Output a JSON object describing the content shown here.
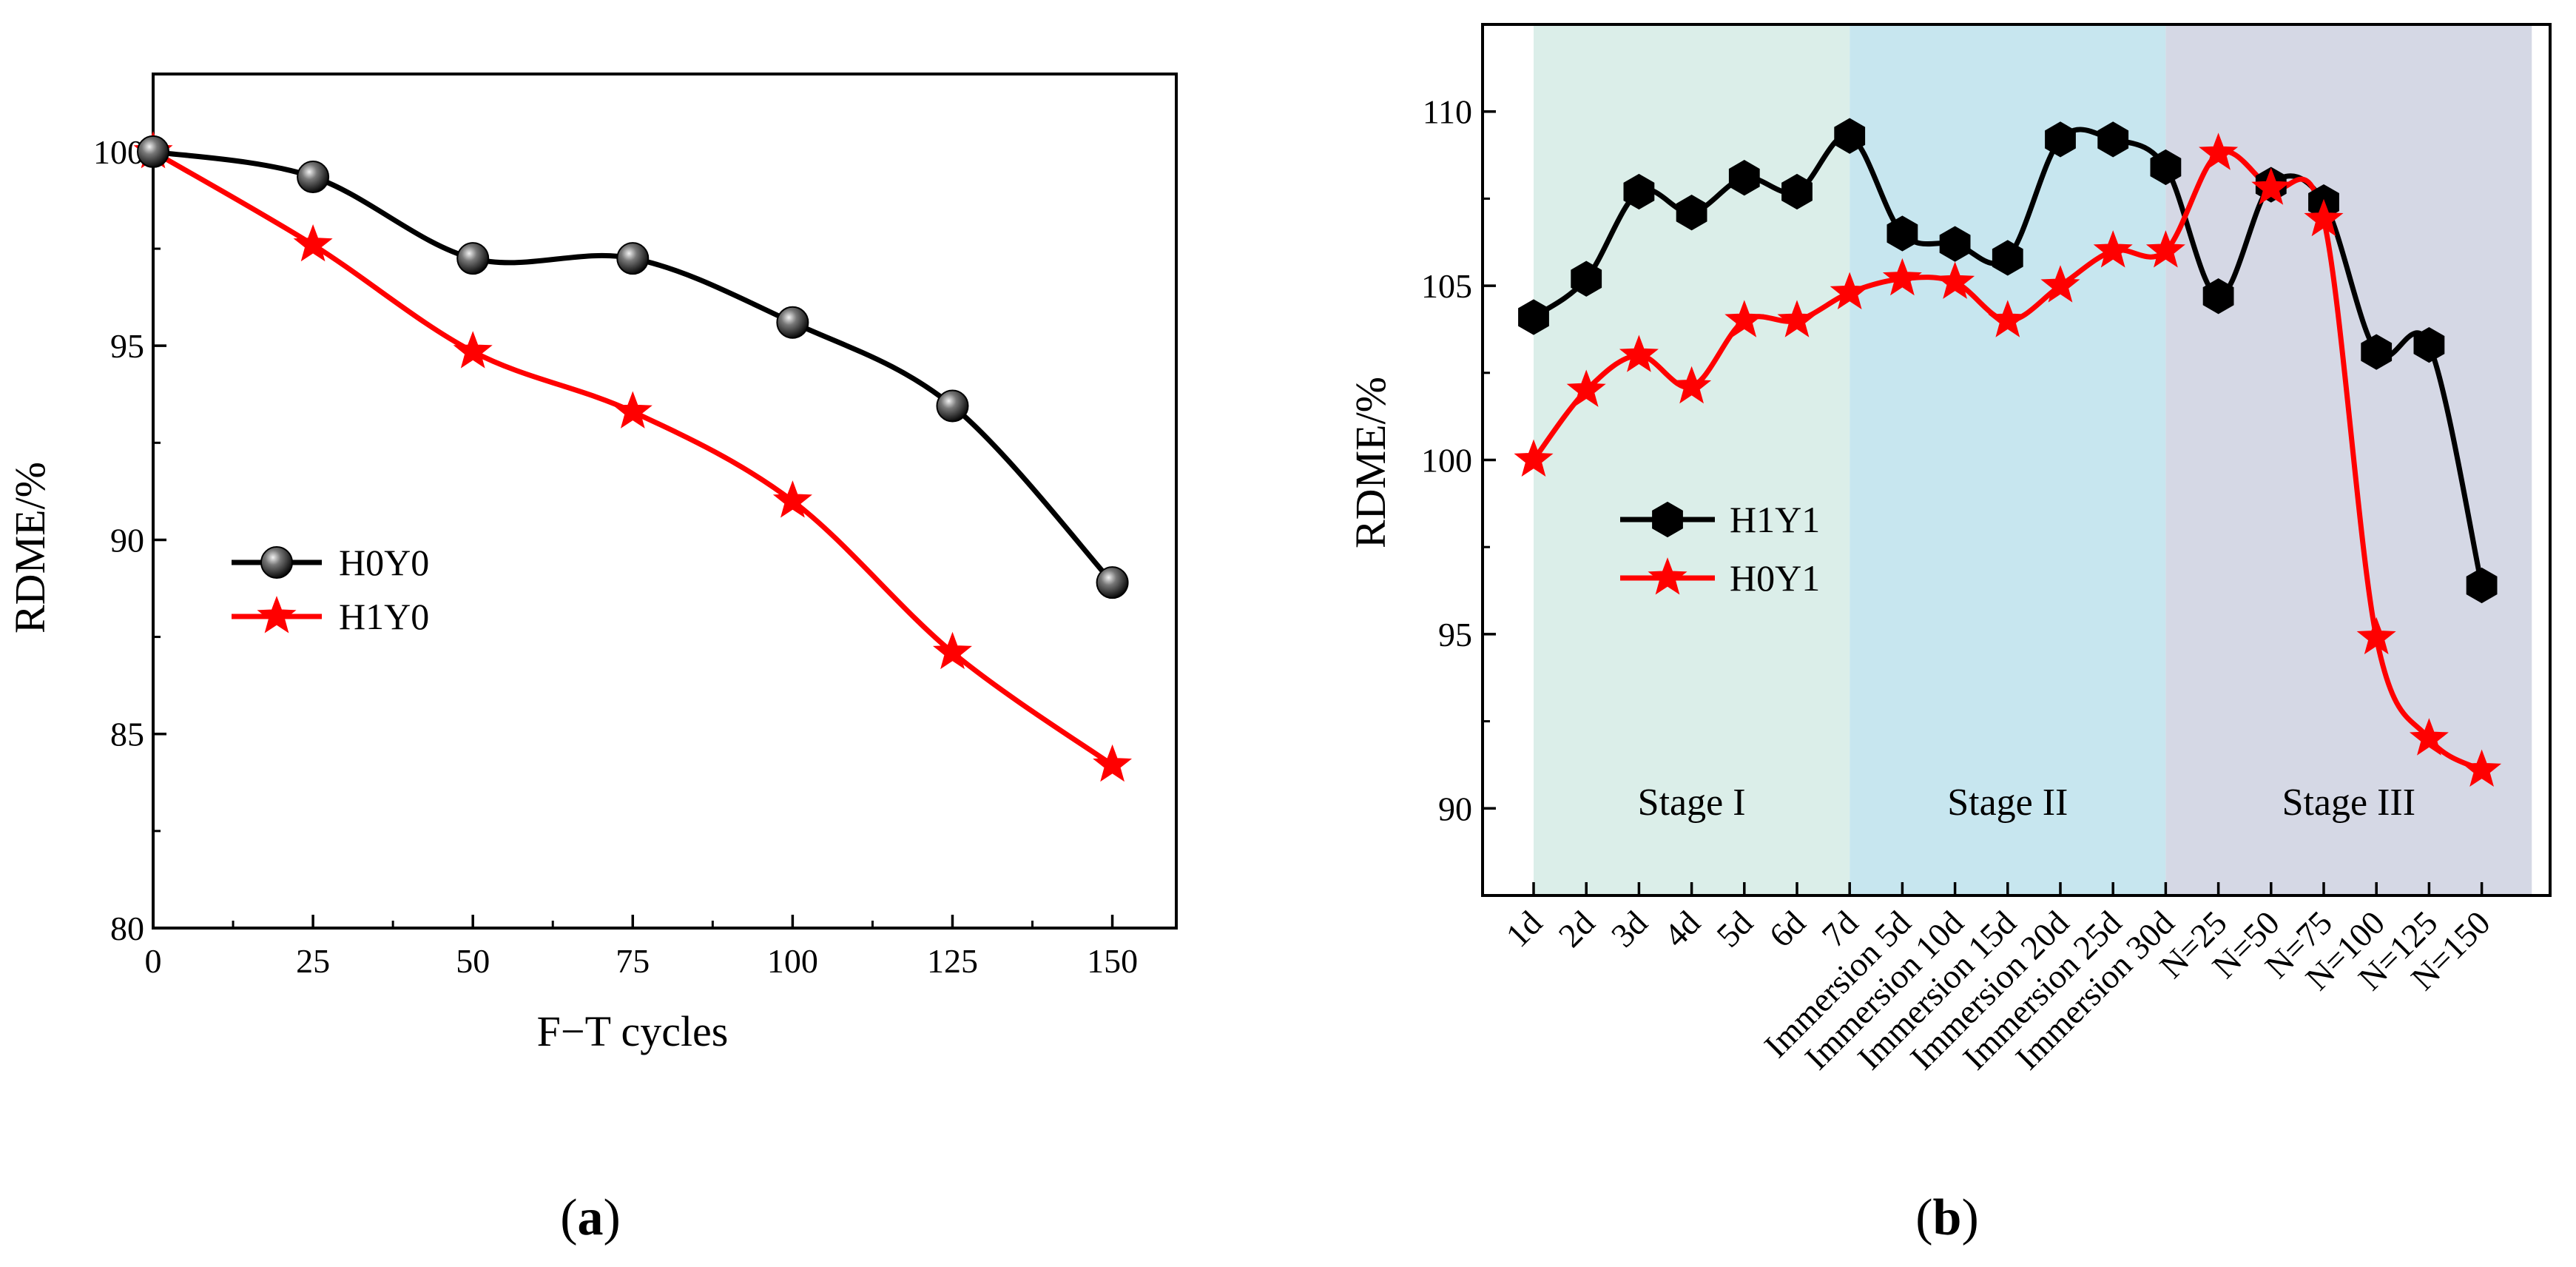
{
  "colors": {
    "black_series": "#000000",
    "red_series": "#ff0000",
    "stage1_band": "#dbeee9",
    "stage2_band": "#c7e6ef",
    "stage3_band": "#d5d8e5"
  },
  "chart_data": [
    {
      "type": "line",
      "panel_label": "a",
      "xlabel": "F−T cycles",
      "ylabel": "RDME/%",
      "xlim": [
        0,
        160
      ],
      "ylim": [
        80,
        102
      ],
      "x_ticks": [
        0,
        25,
        50,
        75,
        100,
        125,
        150
      ],
      "y_ticks": [
        80,
        85,
        90,
        95,
        100
      ],
      "legend_position": "middle-left",
      "series": [
        {
          "name": "H0Y0",
          "color": "#000000",
          "marker": "sphere",
          "x": [
            0,
            25,
            50,
            75,
            100,
            125,
            150
          ],
          "values": [
            100.0,
            99.35,
            97.25,
            97.25,
            95.6,
            93.45,
            88.9
          ]
        },
        {
          "name": "H1Y0",
          "color": "#ff0000",
          "marker": "star",
          "x": [
            0,
            25,
            50,
            75,
            100,
            125,
            150
          ],
          "values": [
            100.0,
            97.6,
            94.85,
            93.3,
            91.0,
            87.1,
            84.2
          ]
        }
      ]
    },
    {
      "type": "line",
      "panel_label": "b",
      "xlabel": "",
      "ylabel": "RDME/%",
      "ylim": [
        87.5,
        112.5
      ],
      "y_ticks": [
        90,
        95,
        100,
        105,
        110
      ],
      "categories": [
        "1d",
        "2d",
        "3d",
        "4d",
        "5d",
        "6d",
        "7d",
        "Immersion 5d",
        "Immersion 10d",
        "Immersion 15d",
        "Immersion 20d",
        "Immersion 25d",
        "Immersion 30d",
        "N=25",
        "N=50",
        "N=75",
        "N=100",
        "N=125",
        "N=150"
      ],
      "stages": [
        {
          "label": "Stage I",
          "from_index": 0,
          "to_index": 6
        },
        {
          "label": "Stage II",
          "from_index": 6,
          "to_index": 12
        },
        {
          "label": "Stage III",
          "from_index": 12,
          "to_index": 18.95
        }
      ],
      "legend_position": "middle-left",
      "series": [
        {
          "name": "H1Y1",
          "color": "#000000",
          "marker": "hexagon",
          "values": [
            104.1,
            105.2,
            107.7,
            107.1,
            108.1,
            107.7,
            109.3,
            106.5,
            106.2,
            105.8,
            109.2,
            109.2,
            108.4,
            104.7,
            107.9,
            107.4,
            103.1,
            103.3,
            96.4
          ]
        },
        {
          "name": "H0Y1",
          "color": "#ff0000",
          "marker": "star",
          "values": [
            100.0,
            102.0,
            103.0,
            102.1,
            104.0,
            104.0,
            104.8,
            105.2,
            105.1,
            104.0,
            105.0,
            106.0,
            106.0,
            108.8,
            107.8,
            106.9,
            94.9,
            92.0,
            91.1
          ]
        }
      ]
    }
  ]
}
